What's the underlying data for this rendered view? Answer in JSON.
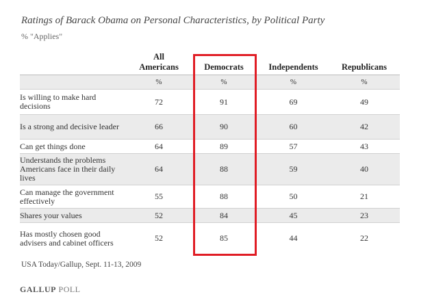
{
  "chart_data": {
    "type": "table",
    "title": "Ratings of Barack Obama on Personal Characteristics, by Political Party",
    "subtitle": "% \"Applies\"",
    "columns": [
      {
        "label": "All Americans",
        "unit": "%"
      },
      {
        "label": "Democrats",
        "unit": "%"
      },
      {
        "label": "Independents",
        "unit": "%"
      },
      {
        "label": "Republicans",
        "unit": "%"
      }
    ],
    "rows": [
      {
        "label": "Is willing to make hard decisions",
        "values": [
          72,
          91,
          69,
          49
        ]
      },
      {
        "label": "Is a strong and decisive leader",
        "values": [
          66,
          90,
          60,
          42
        ]
      },
      {
        "label": "Can get things done",
        "values": [
          64,
          89,
          57,
          43
        ]
      },
      {
        "label": "Understands the problems Americans face in their daily lives",
        "values": [
          64,
          88,
          59,
          40
        ]
      },
      {
        "label": "Can manage the government effectively",
        "values": [
          55,
          88,
          50,
          21
        ]
      },
      {
        "label": "Shares your values",
        "values": [
          52,
          84,
          45,
          23
        ]
      },
      {
        "label": "Has mostly chosen good advisers and cabinet officers",
        "values": [
          52,
          85,
          44,
          22
        ]
      }
    ],
    "highlighted_column": "Democrats",
    "highlight_color": "#e01c24",
    "source": "USA Today/Gallup, Sept. 11-13, 2009"
  },
  "footer": {
    "brand_primary": "GALLUP",
    "brand_secondary": "POLL"
  }
}
